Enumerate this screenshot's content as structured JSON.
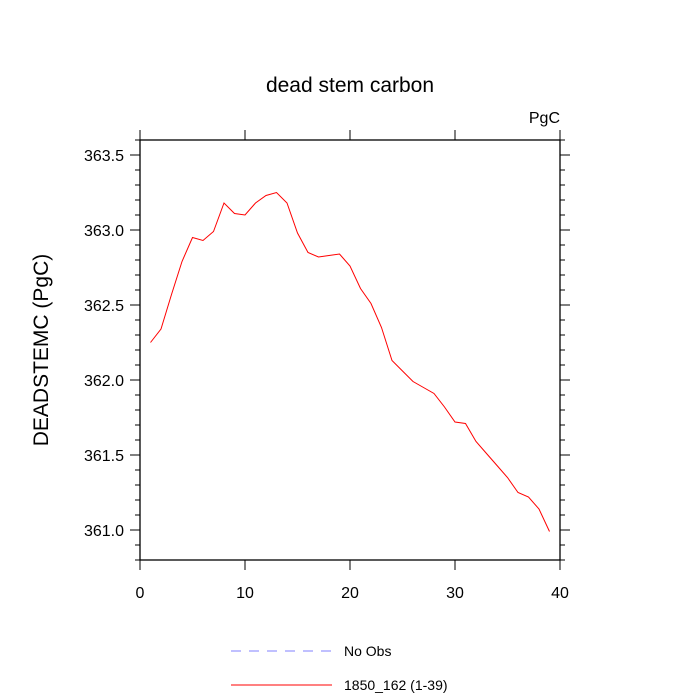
{
  "chart_data": {
    "type": "line",
    "title": "dead stem carbon",
    "units": "PgC",
    "xlabel": "",
    "ylabel": "DEADSTEMC  (PgC)",
    "xlim": [
      0,
      40
    ],
    "ylim": [
      360.8,
      363.6
    ],
    "x_ticks": [
      0,
      10,
      20,
      30,
      40
    ],
    "x_tick_labels": [
      "0",
      "10",
      "20",
      "30",
      "40"
    ],
    "y_ticks": [
      361.0,
      361.5,
      362.0,
      362.5,
      363.0,
      363.5
    ],
    "y_tick_labels": [
      "361.0",
      "361.5",
      "362.0",
      "362.5",
      "363.0",
      "363.5"
    ],
    "grid": false,
    "legend_position": "bottom",
    "series": [
      {
        "name": "No Obs",
        "color": "#8080ff",
        "dash": "dashed",
        "x": [],
        "y": []
      },
      {
        "name": "1850_162 (1-39)",
        "color": "#ff0000",
        "dash": "solid",
        "x": [
          1,
          2,
          3,
          4,
          5,
          6,
          7,
          8,
          9,
          10,
          11,
          12,
          13,
          14,
          15,
          16,
          17,
          18,
          19,
          20,
          21,
          22,
          23,
          24,
          25,
          26,
          27,
          28,
          29,
          30,
          31,
          32,
          33,
          34,
          35,
          36,
          37,
          38,
          39
        ],
        "y": [
          362.25,
          362.34,
          362.57,
          362.79,
          362.95,
          362.93,
          362.99,
          363.18,
          363.11,
          363.1,
          363.18,
          363.23,
          363.25,
          363.18,
          362.98,
          362.85,
          362.82,
          362.83,
          362.84,
          362.76,
          362.61,
          362.51,
          362.35,
          362.13,
          362.06,
          361.99,
          361.95,
          361.91,
          361.82,
          361.72,
          361.71,
          361.59,
          361.51,
          361.43,
          361.35,
          361.25,
          361.22,
          361.14,
          360.99
        ]
      }
    ]
  }
}
